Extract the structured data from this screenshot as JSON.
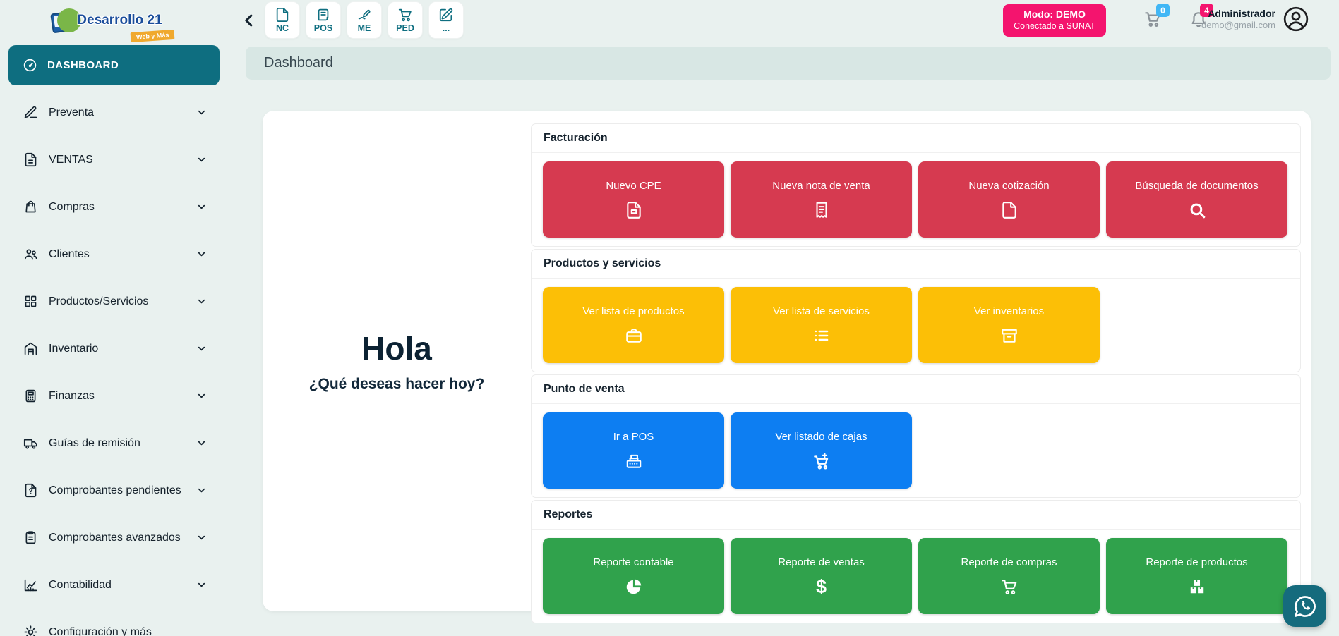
{
  "brand": {
    "name": "Desarrollo 21",
    "tagline": "Web y Más"
  },
  "header": {
    "back_icon": "chevron-left",
    "quick_actions": [
      {
        "label": "NC",
        "icon": "file"
      },
      {
        "label": "POS",
        "icon": "receipt-scroll"
      },
      {
        "label": "ME",
        "icon": "pen"
      },
      {
        "label": "PED",
        "icon": "cart"
      },
      {
        "label": "...",
        "icon": "edit"
      }
    ],
    "mode_badge": {
      "line1": "Modo: DEMO",
      "line2": "Conectado a SUNAT",
      "color": "#f4146e"
    },
    "cart_icon": "cart",
    "cart_count": "0",
    "bell_icon": "bell",
    "notification_count": "4",
    "user": {
      "name": "Administrador",
      "email": "demo@gmail.com",
      "avatar_icon": "person-circle"
    }
  },
  "sidebar": {
    "active_item": {
      "label": "DASHBOARD",
      "icon": "speedometer"
    },
    "chevron_icon": "chevron-down",
    "items": [
      {
        "label": "Preventa",
        "icon": "pencil",
        "has_chevron": true
      },
      {
        "label": "VENTAS",
        "icon": "file-text",
        "has_chevron": true
      },
      {
        "label": "Compras",
        "icon": "bag",
        "has_chevron": true
      },
      {
        "label": "Clientes",
        "icon": "users",
        "has_chevron": true
      },
      {
        "label": "Productos/Servicios",
        "icon": "grid",
        "has_chevron": true
      },
      {
        "label": "Inventario",
        "icon": "warehouse",
        "has_chevron": true
      },
      {
        "label": "Finanzas",
        "icon": "calculator",
        "has_chevron": true
      },
      {
        "label": "Guías de remisión",
        "icon": "truck",
        "has_chevron": true
      },
      {
        "label": "Comprobantes pendientes",
        "icon": "file-question",
        "has_chevron": true
      },
      {
        "label": "Comprobantes avanzados",
        "icon": "clipboard",
        "has_chevron": true
      },
      {
        "label": "Contabilidad",
        "icon": "chart",
        "has_chevron": true
      },
      {
        "label": "Configuración y más",
        "icon": "gear",
        "has_chevron": false
      }
    ]
  },
  "breadcrumb": {
    "title": "Dashboard"
  },
  "main": {
    "greeting_title": "Hola",
    "greeting_subtitle": "¿Qué deseas hacer hoy?",
    "sections": [
      {
        "title": "Facturación",
        "color": "#d63a50",
        "buttons": [
          {
            "label": "Nuevo CPE",
            "icon": "file-invoice"
          },
          {
            "label": "Nueva nota de venta",
            "icon": "receipt"
          },
          {
            "label": "Nueva cotización",
            "icon": "file"
          },
          {
            "label": "Búsqueda de documentos",
            "icon": "search"
          }
        ]
      },
      {
        "title": "Productos y servicios",
        "color": "#fcbf06",
        "buttons": [
          {
            "label": "Ver lista de productos",
            "icon": "briefcase"
          },
          {
            "label": "Ver lista de servicios",
            "icon": "list"
          },
          {
            "label": "Ver inventarios",
            "icon": "archive"
          }
        ]
      },
      {
        "title": "Punto de venta",
        "color": "#0d7ef2",
        "buttons": [
          {
            "label": "Ir a POS",
            "icon": "cash-register"
          },
          {
            "label": "Ver listado de cajas",
            "icon": "cart-plus"
          }
        ]
      },
      {
        "title": "Reportes",
        "color": "#30a24c",
        "buttons": [
          {
            "label": "Reporte contable",
            "icon": "pie-chart"
          },
          {
            "label": "Reporte de ventas",
            "icon": "dollar"
          },
          {
            "label": "Reporte de compras",
            "icon": "cart"
          },
          {
            "label": "Reporte de productos",
            "icon": "boxes"
          }
        ]
      }
    ]
  },
  "floating": {
    "whatsapp_icon": "whatsapp"
  }
}
